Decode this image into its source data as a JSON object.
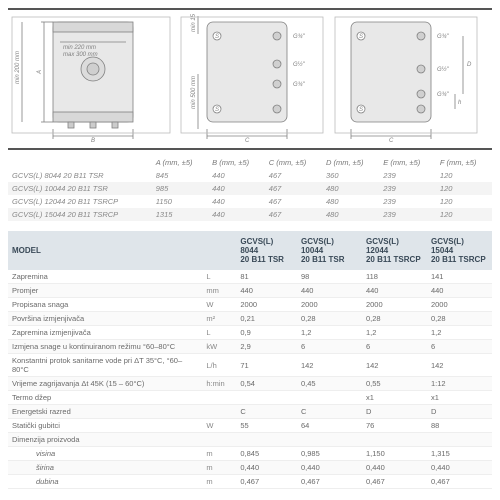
{
  "diagrams": {
    "stroke": "#808080",
    "fill_body": "#e8e8e8",
    "fill_accent": "#d0d0d0",
    "text_color": "#808080",
    "labels": {
      "min200": "min 200 mm",
      "min150": "min 150 mm",
      "min220": "min 220 mm",
      "max300": "max 300 mm",
      "min500": "min 500 mm",
      "A": "A",
      "B": "B",
      "C": "C",
      "D": "D",
      "h": "h",
      "S": "S",
      "G34": "G¾\"",
      "G12": "G½\""
    }
  },
  "dim_table": {
    "headers": [
      "",
      "A (mm, ±5)",
      "B (mm, ±5)",
      "C (mm, ±5)",
      "D (mm, ±5)",
      "E (mm, ±5)",
      "F (mm, ±5)"
    ],
    "rows": [
      [
        "GCVS(L) 8044 20 B11 TSR",
        "845",
        "440",
        "467",
        "360",
        "239",
        "120"
      ],
      [
        "GCVS(L) 10044 20 B11 TSR",
        "985",
        "440",
        "467",
        "480",
        "239",
        "120"
      ],
      [
        "GCVS(L) 12044 20 B11 TSRCP",
        "1150",
        "440",
        "467",
        "480",
        "239",
        "120"
      ],
      [
        "GCVS(L) 15044 20 B11 TSRCP",
        "1315",
        "440",
        "467",
        "480",
        "239",
        "120"
      ]
    ]
  },
  "spec_table": {
    "headers": [
      "MODEL",
      "",
      "GCVS(L) 8044 20 B11 TSR",
      "GCVS(L) 10044 20 B11 TSR",
      "GCVS(L) 12044 20 B11 TSRCP",
      "GCVS(L) 15044 20 B11 TSRCP"
    ],
    "rows": [
      {
        "label": "Zapremina",
        "unit": "L",
        "v": [
          "81",
          "98",
          "118",
          "141"
        ]
      },
      {
        "label": "Promjer",
        "unit": "mm",
        "v": [
          "440",
          "440",
          "440",
          "440"
        ]
      },
      {
        "label": "Propisana snaga",
        "unit": "W",
        "v": [
          "2000",
          "2000",
          "2000",
          "2000"
        ]
      },
      {
        "label": "Površina izmjenjivača",
        "unit": "m²",
        "v": [
          "0,21",
          "0,28",
          "0,28",
          "0,28"
        ]
      },
      {
        "label": "Zapremina izmjenjivača",
        "unit": "L",
        "v": [
          "0,9",
          "1,2",
          "1,2",
          "1,2"
        ]
      },
      {
        "label": "Izmjena snage u kontinuiranom režimu °60–80°C",
        "unit": "kW",
        "v": [
          "2,9",
          "6",
          "6",
          "6"
        ]
      },
      {
        "label": "Konstantni protok sanitarne vode pri ΔT 35°C, °60–80°C",
        "unit": "L/h",
        "v": [
          "71",
          "142",
          "142",
          "142"
        ]
      },
      {
        "label": "Vrijeme zagrijavanja Δt 45K (15 – 60°C)",
        "unit": "h:min",
        "v": [
          "0,54",
          "0,45",
          "0,55",
          "1:12"
        ]
      },
      {
        "label": "Termo džep",
        "unit": "",
        "v": [
          "",
          "",
          "x1",
          "x1"
        ]
      },
      {
        "label": "Energetski razred",
        "unit": "",
        "v": [
          "C",
          "C",
          "D",
          "D"
        ]
      },
      {
        "label": "Statički gubitci",
        "unit": "W",
        "v": [
          "55",
          "64",
          "76",
          "88"
        ]
      },
      {
        "label": "Dimenzija proizvoda",
        "unit": "",
        "v": [
          "",
          "",
          "",
          ""
        ]
      },
      {
        "label": "visina",
        "indent": true,
        "unit": "m",
        "v": [
          "0,845",
          "0,985",
          "1,150",
          "1,315"
        ]
      },
      {
        "label": "širina",
        "indent": true,
        "unit": "m",
        "v": [
          "0,440",
          "0,440",
          "0,440",
          "0,440"
        ]
      },
      {
        "label": "dubina",
        "indent": true,
        "unit": "m",
        "v": [
          "0,467",
          "0,467",
          "0,467",
          "0,467"
        ]
      }
    ]
  }
}
